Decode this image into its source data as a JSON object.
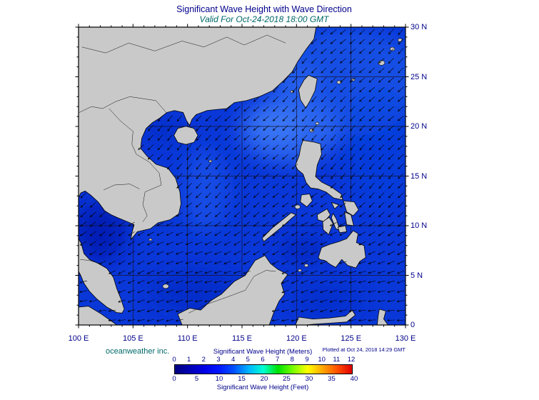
{
  "header": {
    "title": "Significant Wave Height with Wave Direction",
    "subtitle": "Valid For Oct-24-2018 18:00 GMT"
  },
  "axes": {
    "lat_labels": [
      "30 N",
      "25 N",
      "20 N",
      "15 N",
      "10 N",
      "5 N",
      "0"
    ],
    "lon_labels": [
      "100 E",
      "105 E",
      "110 E",
      "115 E",
      "120 E",
      "125 E",
      "130 E"
    ]
  },
  "footer": {
    "credit": "oceanweather inc.",
    "plotted_at": "Plotted at Oct 24, 2018 14:29 GMT"
  },
  "colorbar": {
    "caption_meters": "Significant Wave Height (Meters)",
    "caption_feet": "Significant Wave Height (Feet)",
    "meters_ticks": [
      0,
      1,
      2,
      3,
      4,
      5,
      6,
      7,
      8,
      9,
      10,
      11,
      12
    ],
    "feet_ticks": [
      0,
      5,
      10,
      15,
      20,
      25,
      30,
      35,
      40
    ],
    "gradient": [
      "#000080",
      "#0000b4",
      "#0000e6",
      "#0018ff",
      "#0050ff",
      "#00b4ff",
      "#00ffd2",
      "#00e100",
      "#78ff00",
      "#ffff00",
      "#ffa800",
      "#ff5000",
      "#e10000"
    ]
  },
  "colors": {
    "title_text": "#00008b",
    "subtitle_text": "#006868",
    "axis_text": "#00008b",
    "land": "#c9c9c9",
    "coastline": "#000000",
    "ocean_base": "#0937d8",
    "arrow": "#000000"
  }
}
